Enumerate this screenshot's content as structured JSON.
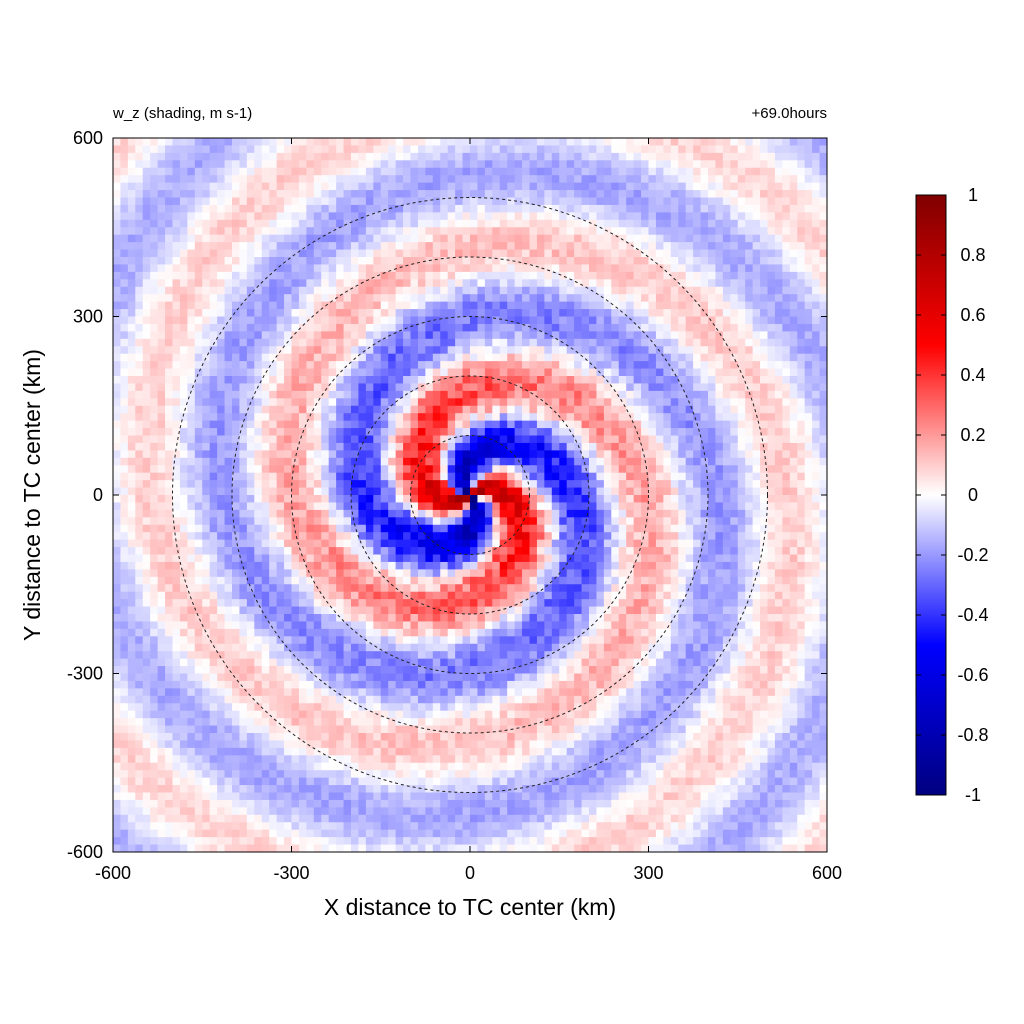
{
  "chart_data": {
    "type": "heatmap",
    "title_left": "w_z (shading, m s-1)",
    "title_right": "+69.0hours",
    "xlabel": "X distance to TC center (km)",
    "ylabel": "Y distance to TC center (km)",
    "xlim": [
      -600,
      600
    ],
    "ylim": [
      -600,
      600
    ],
    "xticks": [
      "-600",
      "-300",
      "0",
      "300",
      "600"
    ],
    "yticks": [
      "600",
      "300",
      "0",
      "-300",
      "-600"
    ],
    "xtick_values": [
      -600,
      -300,
      0,
      300,
      600
    ],
    "ytick_values": [
      600,
      300,
      0,
      -300,
      -600
    ],
    "range_rings_km": [
      100,
      200,
      300,
      400,
      500
    ],
    "field": "w_z",
    "units": "m s-1",
    "colorbar": {
      "min": -1,
      "max": 1,
      "ticks": [
        "1",
        "0.8",
        "0.6",
        "0.4",
        "0.2",
        "0",
        "-0.2",
        "-0.4",
        "-0.6",
        "-0.8",
        "-1"
      ],
      "tick_values": [
        1,
        0.8,
        0.6,
        0.4,
        0.2,
        0,
        -0.2,
        -0.4,
        -0.6,
        -0.8,
        -1
      ],
      "colors": {
        "low": "#000080",
        "mid_low": "#0000ff",
        "zero": "#ffffff",
        "mid_high": "#ff0000",
        "high": "#800000"
      }
    },
    "grid": false
  }
}
